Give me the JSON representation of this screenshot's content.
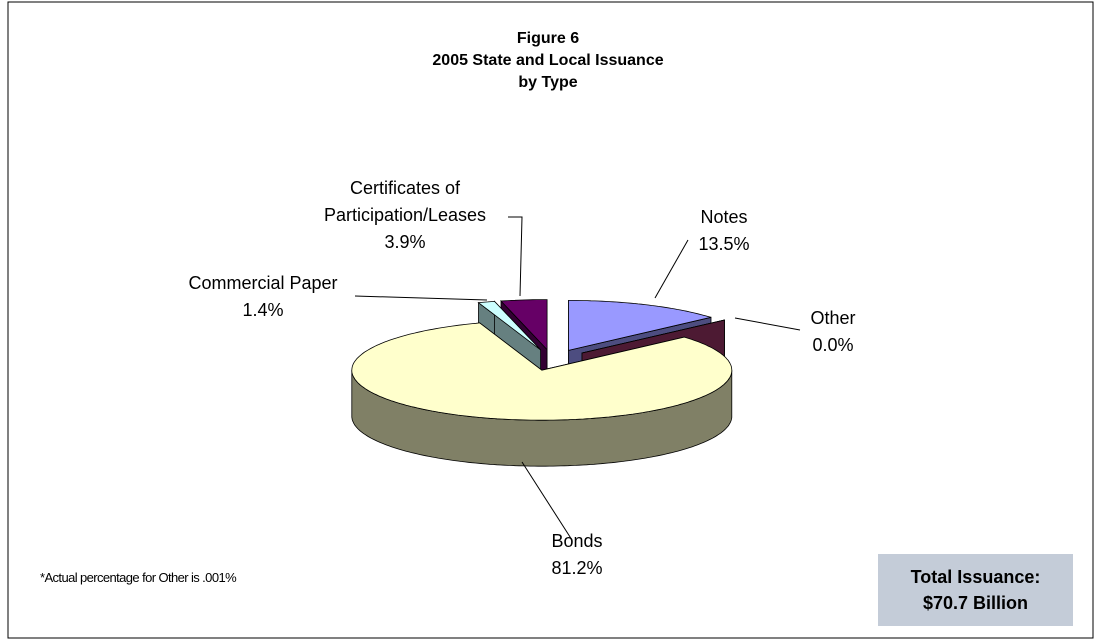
{
  "chart_data": {
    "type": "pie3d",
    "title_lines": [
      "Figure 6",
      "2005 State and Local Issuance",
      "by Type"
    ],
    "categories": [
      "Notes",
      "Other",
      "Bonds",
      "Commercial Paper",
      "Certificates of Participation/Leases"
    ],
    "values": [
      13.5,
      0.0,
      81.2,
      1.4,
      3.9
    ],
    "value_labels": [
      "13.5%",
      "0.0%",
      "81.2%",
      "1.4%",
      "3.9%"
    ],
    "colors": [
      "#9999ff",
      "#993366",
      "#ffffcc",
      "#ccffff",
      "#660066"
    ],
    "footnote": "*Actual percentage for Other is .001%",
    "total_box": [
      "Total Issuance:",
      "$70.7 Billion"
    ]
  }
}
